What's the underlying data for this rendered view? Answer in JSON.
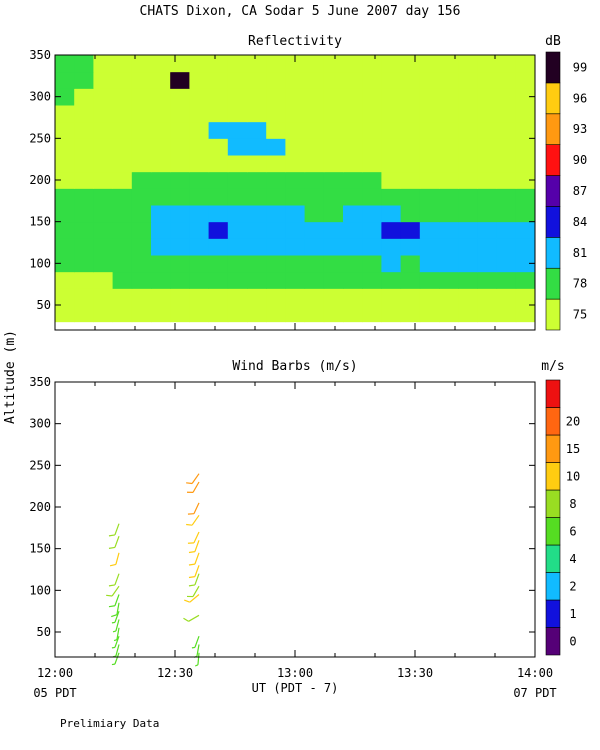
{
  "header": {
    "title": "CHATS Dixon, CA  Sodar   5 June 2007  day 156",
    "ylabel": "Altitude (m)",
    "xlabel": "UT  (PDT - 7)",
    "x_left_note": "05 PDT",
    "x_right_note": "07 PDT",
    "footer": "Prelimiary Data"
  },
  "colors": {
    "refl": [
      "#ccff33",
      "#33dd44",
      "#11bbff",
      "#1111dd",
      "#5500aa",
      "#ff1111",
      "#ff9911",
      "#ffcc11",
      "#220022"
    ],
    "wind": [
      "#550077",
      "#1111dd",
      "#11bbff",
      "#22dd88",
      "#55dd22",
      "#99dd22",
      "#ffcc11",
      "#ff9911",
      "#ff6611",
      "#ee1111"
    ]
  },
  "chart_data": [
    {
      "type": "heatmap",
      "title": "Reflectivity",
      "xlim": [
        "12:00",
        "14:00"
      ],
      "ylim": [
        20,
        350
      ],
      "yticks": [
        50,
        100,
        150,
        200,
        250,
        300,
        350
      ],
      "colorbar": {
        "unit": "dB",
        "levels": [
          75,
          78,
          81,
          84,
          87,
          90,
          93,
          96,
          99
        ]
      },
      "x": [
        "12:00",
        "12:05",
        "12:10",
        "12:15",
        "12:20",
        "12:25",
        "12:30",
        "12:35",
        "12:40",
        "12:45",
        "12:50",
        "12:55",
        "13:00",
        "13:05",
        "13:10",
        "13:15",
        "13:20",
        "13:25",
        "13:30",
        "13:35",
        "13:40",
        "13:45",
        "13:50",
        "13:55",
        "14:00"
      ],
      "y": [
        40,
        60,
        80,
        100,
        120,
        140,
        160,
        180,
        200,
        220,
        240,
        260,
        280,
        300,
        320,
        340
      ],
      "values_dB": [
        [
          75,
          75,
          75,
          75,
          75,
          75,
          75,
          75,
          75,
          75,
          75,
          75,
          75,
          75,
          75,
          75,
          75,
          75,
          75,
          75,
          75,
          75,
          75,
          75,
          75
        ],
        [
          75,
          75,
          75,
          75,
          75,
          75,
          75,
          75,
          75,
          75,
          75,
          75,
          75,
          75,
          75,
          75,
          75,
          75,
          75,
          75,
          75,
          75,
          75,
          75,
          75
        ],
        [
          75,
          75,
          75,
          78,
          78,
          78,
          78,
          78,
          78,
          78,
          78,
          78,
          78,
          78,
          78,
          78,
          78,
          78,
          78,
          78,
          78,
          78,
          78,
          78,
          78
        ],
        [
          78,
          78,
          78,
          78,
          78,
          78,
          78,
          78,
          78,
          78,
          78,
          78,
          78,
          78,
          78,
          78,
          78,
          81,
          78,
          81,
          81,
          81,
          81,
          81,
          81
        ],
        [
          78,
          78,
          78,
          78,
          78,
          81,
          81,
          81,
          81,
          81,
          81,
          81,
          81,
          81,
          81,
          81,
          81,
          81,
          81,
          81,
          81,
          81,
          81,
          81,
          81
        ],
        [
          78,
          78,
          78,
          78,
          78,
          81,
          81,
          81,
          84,
          81,
          81,
          81,
          81,
          81,
          81,
          81,
          81,
          84,
          84,
          81,
          81,
          81,
          81,
          81,
          81
        ],
        [
          78,
          78,
          78,
          78,
          78,
          81,
          81,
          81,
          81,
          81,
          81,
          81,
          81,
          78,
          78,
          81,
          81,
          81,
          78,
          78,
          78,
          78,
          78,
          78,
          78
        ],
        [
          78,
          78,
          78,
          78,
          78,
          78,
          78,
          78,
          78,
          78,
          78,
          78,
          78,
          78,
          78,
          78,
          78,
          78,
          78,
          78,
          78,
          78,
          78,
          78,
          78
        ],
        [
          75,
          75,
          75,
          75,
          78,
          78,
          78,
          78,
          78,
          78,
          78,
          78,
          78,
          78,
          78,
          78,
          78,
          75,
          75,
          75,
          75,
          75,
          75,
          75,
          75
        ],
        [
          75,
          75,
          75,
          75,
          75,
          75,
          75,
          75,
          75,
          75,
          75,
          75,
          75,
          75,
          75,
          75,
          75,
          75,
          75,
          75,
          75,
          75,
          75,
          75,
          75
        ],
        [
          75,
          75,
          75,
          75,
          75,
          75,
          75,
          75,
          75,
          81,
          81,
          81,
          75,
          75,
          75,
          75,
          75,
          75,
          75,
          75,
          75,
          75,
          75,
          75,
          75
        ],
        [
          75,
          75,
          75,
          75,
          75,
          75,
          75,
          75,
          81,
          81,
          81,
          75,
          75,
          75,
          75,
          75,
          75,
          75,
          75,
          75,
          75,
          75,
          75,
          75,
          75
        ],
        [
          75,
          75,
          75,
          75,
          75,
          75,
          75,
          75,
          75,
          75,
          75,
          75,
          75,
          75,
          75,
          75,
          75,
          75,
          75,
          75,
          75,
          75,
          75,
          75,
          75
        ],
        [
          78,
          75,
          75,
          75,
          75,
          75,
          75,
          75,
          75,
          75,
          75,
          75,
          75,
          75,
          75,
          75,
          75,
          75,
          75,
          75,
          75,
          75,
          75,
          75,
          75
        ],
        [
          78,
          78,
          75,
          75,
          75,
          75,
          99,
          75,
          75,
          75,
          75,
          75,
          75,
          75,
          75,
          75,
          75,
          75,
          75,
          75,
          75,
          75,
          75,
          75,
          75
        ],
        [
          78,
          78,
          75,
          75,
          75,
          75,
          75,
          75,
          75,
          75,
          75,
          75,
          75,
          75,
          75,
          75,
          75,
          75,
          75,
          75,
          75,
          75,
          75,
          75,
          75
        ]
      ]
    },
    {
      "type": "scatter",
      "title": "Wind Barbs (m/s)",
      "xlim": [
        "12:00",
        "14:00"
      ],
      "xticks": [
        "12:00",
        "12:30",
        "13:00",
        "13:30",
        "14:00"
      ],
      "ylim": [
        20,
        350
      ],
      "yticks": [
        50,
        100,
        150,
        200,
        250,
        300,
        350
      ],
      "colorbar": {
        "unit": "m/s",
        "levels": [
          0,
          1,
          2,
          4,
          6,
          8,
          10,
          15,
          20
        ]
      },
      "series": [
        {
          "time": "12:16",
          "points": [
            {
              "alt": 25,
              "speed": 4.5,
              "dir": 200
            },
            {
              "alt": 35,
              "speed": 4.5,
              "dir": 195
            },
            {
              "alt": 45,
              "speed": 4.8,
              "dir": 200
            },
            {
              "alt": 55,
              "speed": 4.5,
              "dir": 190
            },
            {
              "alt": 65,
              "speed": 4.5,
              "dir": 195
            },
            {
              "alt": 75,
              "speed": 4.8,
              "dir": 200
            },
            {
              "alt": 85,
              "speed": 5.0,
              "dir": 190
            },
            {
              "alt": 95,
              "speed": 5.5,
              "dir": 200
            },
            {
              "alt": 105,
              "speed": 6.5,
              "dir": 215
            },
            {
              "alt": 120,
              "speed": 7.0,
              "dir": 200
            },
            {
              "alt": 145,
              "speed": 8.5,
              "dir": 195
            },
            {
              "alt": 165,
              "speed": 7.5,
              "dir": 200
            },
            {
              "alt": 180,
              "speed": 7.0,
              "dir": 200
            }
          ]
        },
        {
          "time": "12:36",
          "points": [
            {
              "alt": 25,
              "speed": 4.5,
              "dir": 185
            },
            {
              "alt": 35,
              "speed": 4.0,
              "dir": 190
            },
            {
              "alt": 45,
              "speed": 4.5,
              "dir": 200
            },
            {
              "alt": 70,
              "speed": 7.0,
              "dir": 240
            },
            {
              "alt": 95,
              "speed": 9.0,
              "dir": 230
            },
            {
              "alt": 105,
              "speed": 6.5,
              "dir": 210
            },
            {
              "alt": 120,
              "speed": 6.5,
              "dir": 200
            },
            {
              "alt": 130,
              "speed": 9.0,
              "dir": 200
            },
            {
              "alt": 145,
              "speed": 8.5,
              "dir": 200
            },
            {
              "alt": 160,
              "speed": 9.5,
              "dir": 200
            },
            {
              "alt": 170,
              "speed": 9.0,
              "dir": 205
            },
            {
              "alt": 190,
              "speed": 9.5,
              "dir": 215
            },
            {
              "alt": 205,
              "speed": 10.0,
              "dir": 205
            },
            {
              "alt": 230,
              "speed": 11.0,
              "dir": 210
            },
            {
              "alt": 240,
              "speed": 11.0,
              "dir": 215
            }
          ]
        }
      ]
    }
  ]
}
